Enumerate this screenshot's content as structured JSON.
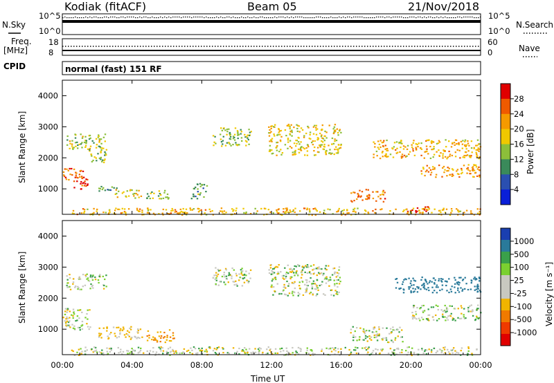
{
  "header": {
    "site": "Kodiak (fitACF)",
    "beam": "Beam 05",
    "date": "21/Nov/2018"
  },
  "noise_panel": {
    "left_label": "N.Sky",
    "right_label": "N.Search",
    "ticks": [
      "10^5",
      "10^0"
    ]
  },
  "freq_panel": {
    "left_label_1": "Freq.",
    "left_label_2": "[MHz]",
    "right_label": "Nave",
    "left_ticks": [
      "18",
      "8"
    ],
    "right_ticks": [
      "60",
      "0"
    ]
  },
  "cpid_panel": {
    "label": "CPID",
    "mode": "normal (fast) 151 RF"
  },
  "colors": {
    "power_scale": [
      "#0a1fd8",
      "#2a4fb0",
      "#3a8a5a",
      "#8cbf3a",
      "#f0c800",
      "#f59a00",
      "#ef5a00",
      "#e00000"
    ],
    "velocity_scale": [
      "#1a3fb0",
      "#2a7a9a",
      "#3aa04a",
      "#7ad030",
      "#c8c8c0",
      "#c8c8c0",
      "#f0b400",
      "#f07a00",
      "#ef3a00",
      "#e00000"
    ]
  },
  "chart_data": [
    {
      "type": "heatmap",
      "name": "power",
      "ylabel": "Slant Range [km]",
      "ylim": [
        180,
        4500
      ],
      "yticks": [
        "4000",
        "3000",
        "2000",
        "1000"
      ],
      "xlim": [
        0,
        24
      ],
      "xticks": [
        "00:00",
        "04:00",
        "08:00",
        "12:00",
        "16:00",
        "20:00",
        "00:00"
      ],
      "colorbar": {
        "label": "Power [dB]",
        "ticks": [
          "28",
          "24",
          "20",
          "16",
          "12",
          "8",
          "4"
        ],
        "range": [
          0,
          32
        ]
      },
      "regions": [
        {
          "t": [
            0.0,
            1.2
          ],
          "r": [
            1300,
            1700
          ],
          "level": 24
        },
        {
          "t": [
            0.6,
            1.6
          ],
          "r": [
            1000,
            1400
          ],
          "level": 28
        },
        {
          "t": [
            0.2,
            2.5
          ],
          "r": [
            2300,
            2800
          ],
          "level": 16
        },
        {
          "t": [
            1.5,
            2.5
          ],
          "r": [
            1800,
            2300
          ],
          "level": 14
        },
        {
          "t": [
            2.0,
            3.2
          ],
          "r": [
            900,
            1100
          ],
          "level": 10
        },
        {
          "t": [
            3.0,
            4.6
          ],
          "r": [
            720,
            1000
          ],
          "level": 18
        },
        {
          "t": [
            4.8,
            6.2
          ],
          "r": [
            700,
            1000
          ],
          "level": 14
        },
        {
          "t": [
            7.3,
            8.3
          ],
          "r": [
            700,
            1200
          ],
          "level": 12
        },
        {
          "t": [
            8.6,
            10.8
          ],
          "r": [
            2400,
            3000
          ],
          "level": 14
        },
        {
          "t": [
            11.8,
            16.0
          ],
          "r": [
            2100,
            3100
          ],
          "level": 18
        },
        {
          "t": [
            16.5,
            18.5
          ],
          "r": [
            600,
            1000
          ],
          "level": 24
        },
        {
          "t": [
            17.8,
            24.0
          ],
          "r": [
            2000,
            2600
          ],
          "level": 20
        },
        {
          "t": [
            19.5,
            21.0
          ],
          "r": [
            250,
            450
          ],
          "level": 30
        },
        {
          "t": [
            20.5,
            24.0
          ],
          "r": [
            1400,
            1800
          ],
          "level": 22
        },
        {
          "t": [
            0.5,
            24.0
          ],
          "r": [
            180,
            400
          ],
          "level": 20
        }
      ]
    },
    {
      "type": "heatmap",
      "name": "velocity",
      "ylabel": "Slant Range [km]",
      "ylim": [
        180,
        4500
      ],
      "yticks": [
        "4000",
        "3000",
        "2000",
        "1000"
      ],
      "xlim": [
        0,
        24
      ],
      "xticks": [
        "00:00",
        "04:00",
        "08:00",
        "12:00",
        "16:00",
        "20:00",
        "00:00"
      ],
      "xlabel": "Time UT",
      "colorbar": {
        "label": "Velocity [m s⁻¹]",
        "ticks": [
          "1000",
          "500",
          "100",
          "25",
          "-25",
          "-100",
          "-500",
          "-1000"
        ]
      },
      "regions": [
        {
          "t": [
            0.0,
            1.6
          ],
          "r": [
            1000,
            1700
          ],
          "v": 0
        },
        {
          "t": [
            0.2,
            2.5
          ],
          "r": [
            2300,
            2800
          ],
          "v": 0
        },
        {
          "t": [
            2.0,
            4.6
          ],
          "r": [
            700,
            1100
          ],
          "v": -100
        },
        {
          "t": [
            4.8,
            6.4
          ],
          "r": [
            600,
            1000
          ],
          "v": -300
        },
        {
          "t": [
            8.6,
            10.8
          ],
          "r": [
            2400,
            3000
          ],
          "v": 0
        },
        {
          "t": [
            11.8,
            16.0
          ],
          "r": [
            2100,
            3100
          ],
          "v": 0
        },
        {
          "t": [
            16.5,
            19.5
          ],
          "r": [
            600,
            1100
          ],
          "v": 0
        },
        {
          "t": [
            19.0,
            24.0
          ],
          "r": [
            2200,
            2700
          ],
          "v": 400
        },
        {
          "t": [
            20.0,
            24.0
          ],
          "r": [
            1300,
            1800
          ],
          "v": 0
        },
        {
          "t": [
            0.5,
            24.0
          ],
          "r": [
            180,
            450
          ],
          "v": 0
        }
      ]
    }
  ]
}
